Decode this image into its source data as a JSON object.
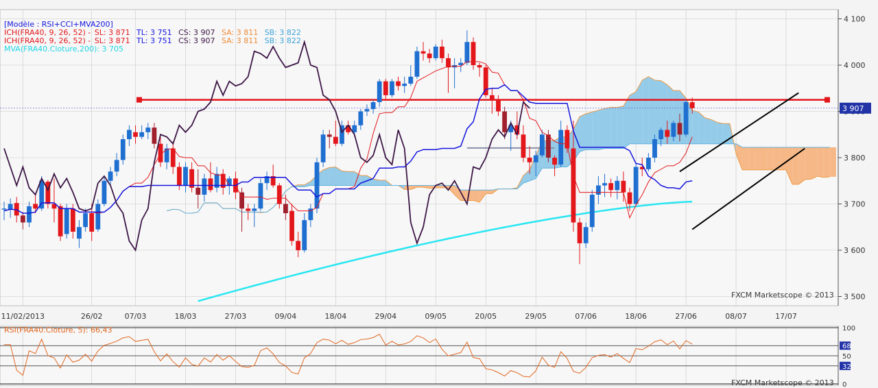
{
  "legend": {
    "model": "[Modèle : RSI+CCI+MVA200]",
    "ichimoku_lines": [
      {
        "name": "ICH(FRA40, 9, 26, 52) -",
        "sl": "SL: 3 871",
        "tl": "TL: 3 751",
        "cs": "CS: 3 907",
        "sa": "SA: 3 811",
        "sb": "SB: 3 822"
      },
      {
        "name": "ICH(FRA40, 9, 26, 52) -",
        "sl": "SL: 3 871",
        "tl": "TL: 3 751",
        "cs": "CS: 3 907",
        "sa": "SA: 3 811",
        "sb": "SB: 3 822"
      }
    ],
    "mva": "MVA(FRA40.Cloture,200): 3 705",
    "rsi": "RSI(FRA40.Cloture, 5): 66,43"
  },
  "watermark": "FXCM Marketscope © 2013",
  "colors": {
    "background": "#f4f4f4",
    "grid": "#c8c8c8",
    "bull": "#1f6fd1",
    "bear": "#e3161b",
    "bear_dark": "#a1202d",
    "tenkan": "#e3161b",
    "kijun": "#1414dd",
    "chikou": "#3c1545",
    "cloud_bull": "#93cbe9",
    "cloud_bear": "#f6b887",
    "mva": "#27e6f2",
    "rsi": "#e1661e",
    "resistance": "#e3161b",
    "price_tag": "#2233a8"
  },
  "chart_data": {
    "type": "candlestick",
    "instrument": "FRA40",
    "price_axis": {
      "ticks": [
        "4 100",
        "4 000",
        "3 900",
        "3 800",
        "3 700",
        "3 600",
        "3 500"
      ],
      "values": [
        4100,
        4000,
        3900,
        3800,
        3700,
        3600,
        3500
      ],
      "range": [
        3480,
        4120
      ]
    },
    "time_axis": {
      "labels": [
        "11/02/2013",
        "26/02",
        "07/03",
        "18/03",
        "27/03",
        "09/04",
        "18/04",
        "29/04",
        "09/05",
        "20/05",
        "29/05",
        "07/06",
        "18/06",
        "27/06",
        "08/07",
        "17/07"
      ],
      "label_bars": [
        3,
        14,
        21,
        29,
        37,
        45,
        53,
        61,
        69,
        77,
        85,
        93,
        101,
        109,
        117,
        125
      ]
    },
    "last_price": "3 907",
    "resistance_level": 3925,
    "ohlc": [
      [
        3690,
        3705,
        3665,
        3690
      ],
      [
        3688,
        3712,
        3670,
        3700
      ],
      [
        3702,
        3715,
        3660,
        3675
      ],
      [
        3675,
        3682,
        3645,
        3660
      ],
      [
        3660,
        3705,
        3650,
        3695
      ],
      [
        3700,
        3720,
        3680,
        3690
      ],
      [
        3690,
        3760,
        3685,
        3750
      ],
      [
        3748,
        3752,
        3690,
        3700
      ],
      [
        3700,
        3755,
        3660,
        3690
      ],
      [
        3695,
        3700,
        3620,
        3630
      ],
      [
        3635,
        3700,
        3625,
        3690
      ],
      [
        3690,
        3700,
        3625,
        3640
      ],
      [
        3625,
        3665,
        3605,
        3650
      ],
      [
        3650,
        3690,
        3640,
        3680
      ],
      [
        3680,
        3700,
        3620,
        3640
      ],
      [
        3645,
        3710,
        3640,
        3700
      ],
      [
        3700,
        3760,
        3695,
        3750
      ],
      [
        3750,
        3780,
        3740,
        3770
      ],
      [
        3770,
        3810,
        3760,
        3795
      ],
      [
        3795,
        3850,
        3785,
        3840
      ],
      [
        3840,
        3870,
        3825,
        3860
      ],
      [
        3855,
        3870,
        3830,
        3845
      ],
      [
        3845,
        3870,
        3840,
        3855
      ],
      [
        3855,
        3875,
        3840,
        3865
      ],
      [
        3865,
        3875,
        3820,
        3830
      ],
      [
        3830,
        3845,
        3780,
        3790
      ],
      [
        3790,
        3830,
        3775,
        3820
      ],
      [
        3820,
        3835,
        3765,
        3780
      ],
      [
        3780,
        3790,
        3730,
        3740
      ],
      [
        3740,
        3790,
        3725,
        3780
      ],
      [
        3775,
        3790,
        3725,
        3735
      ],
      [
        3735,
        3775,
        3690,
        3720
      ],
      [
        3720,
        3765,
        3705,
        3755
      ],
      [
        3755,
        3790,
        3725,
        3730
      ],
      [
        3735,
        3780,
        3725,
        3765
      ],
      [
        3765,
        3775,
        3720,
        3735
      ],
      [
        3740,
        3760,
        3720,
        3755
      ],
      [
        3755,
        3770,
        3710,
        3725
      ],
      [
        3725,
        3735,
        3640,
        3690
      ],
      [
        3690,
        3700,
        3665,
        3685
      ],
      [
        3685,
        3700,
        3650,
        3690
      ],
      [
        3690,
        3755,
        3685,
        3745
      ],
      [
        3745,
        3770,
        3730,
        3760
      ],
      [
        3760,
        3785,
        3735,
        3740
      ],
      [
        3740,
        3745,
        3690,
        3700
      ],
      [
        3700,
        3720,
        3665,
        3680
      ],
      [
        3685,
        3700,
        3610,
        3620
      ],
      [
        3620,
        3640,
        3585,
        3600
      ],
      [
        3600,
        3680,
        3595,
        3665
      ],
      [
        3665,
        3700,
        3650,
        3690
      ],
      [
        3690,
        3800,
        3680,
        3790
      ],
      [
        3790,
        3860,
        3780,
        3850
      ],
      [
        3850,
        3860,
        3820,
        3845
      ],
      [
        3845,
        3880,
        3825,
        3830
      ],
      [
        3830,
        3880,
        3825,
        3870
      ],
      [
        3870,
        3880,
        3850,
        3855
      ],
      [
        3855,
        3880,
        3845,
        3870
      ],
      [
        3870,
        3905,
        3860,
        3900
      ],
      [
        3900,
        3915,
        3890,
        3905
      ],
      [
        3905,
        3925,
        3895,
        3920
      ],
      [
        3920,
        3970,
        3910,
        3965
      ],
      [
        3965,
        3970,
        3925,
        3935
      ],
      [
        3935,
        3970,
        3930,
        3965
      ],
      [
        3965,
        3975,
        3945,
        3955
      ],
      [
        3955,
        3975,
        3940,
        3960
      ],
      [
        3960,
        4000,
        3955,
        3975
      ],
      [
        3975,
        4040,
        3970,
        4030
      ],
      [
        4030,
        4050,
        4010,
        4025
      ],
      [
        4025,
        4035,
        4005,
        4015
      ],
      [
        4015,
        4045,
        4010,
        4040
      ],
      [
        4040,
        4055,
        4005,
        4015
      ],
      [
        4015,
        4025,
        3940,
        3995
      ],
      [
        3995,
        4015,
        3950,
        4000
      ],
      [
        4000,
        4015,
        3985,
        4005
      ],
      [
        4005,
        4075,
        4000,
        4050
      ],
      [
        4050,
        4060,
        3990,
        4000
      ],
      [
        4000,
        4005,
        3975,
        3995
      ],
      [
        3995,
        4000,
        3930,
        3935
      ],
      [
        3935,
        3950,
        3895,
        3925
      ],
      [
        3925,
        3935,
        3890,
        3900
      ],
      [
        3900,
        3910,
        3840,
        3855
      ],
      [
        3855,
        3880,
        3815,
        3870
      ],
      [
        3870,
        3900,
        3840,
        3850
      ],
      [
        3850,
        3870,
        3790,
        3800
      ],
      [
        3800,
        3825,
        3765,
        3790
      ],
      [
        3790,
        3815,
        3760,
        3805
      ],
      [
        3805,
        3860,
        3800,
        3850
      ],
      [
        3850,
        3860,
        3790,
        3800
      ],
      [
        3800,
        3805,
        3760,
        3785
      ],
      [
        3785,
        3880,
        3780,
        3860
      ],
      [
        3860,
        3870,
        3810,
        3820
      ],
      [
        3820,
        3880,
        3640,
        3660
      ],
      [
        3660,
        3670,
        3570,
        3615
      ],
      [
        3615,
        3660,
        3605,
        3650
      ],
      [
        3650,
        3730,
        3640,
        3720
      ],
      [
        3720,
        3760,
        3700,
        3740
      ],
      [
        3740,
        3765,
        3715,
        3745
      ],
      [
        3745,
        3755,
        3715,
        3730
      ],
      [
        3730,
        3760,
        3710,
        3750
      ],
      [
        3750,
        3770,
        3705,
        3725
      ],
      [
        3725,
        3735,
        3685,
        3700
      ],
      [
        3700,
        3790,
        3695,
        3780
      ],
      [
        3780,
        3800,
        3760,
        3775
      ],
      [
        3775,
        3810,
        3770,
        3800
      ],
      [
        3800,
        3850,
        3790,
        3840
      ],
      [
        3840,
        3865,
        3825,
        3860
      ],
      [
        3860,
        3880,
        3830,
        3845
      ],
      [
        3845,
        3880,
        3835,
        3875
      ],
      [
        3875,
        3895,
        3835,
        3850
      ],
      [
        3850,
        3925,
        3845,
        3920
      ],
      [
        3920,
        3930,
        3895,
        3907
      ]
    ],
    "mva200": {
      "from": [
        3490,
        3705
      ]
    },
    "rsi": {
      "levels": [
        100,
        68,
        50,
        32,
        0
      ],
      "last": 66.43
    }
  }
}
